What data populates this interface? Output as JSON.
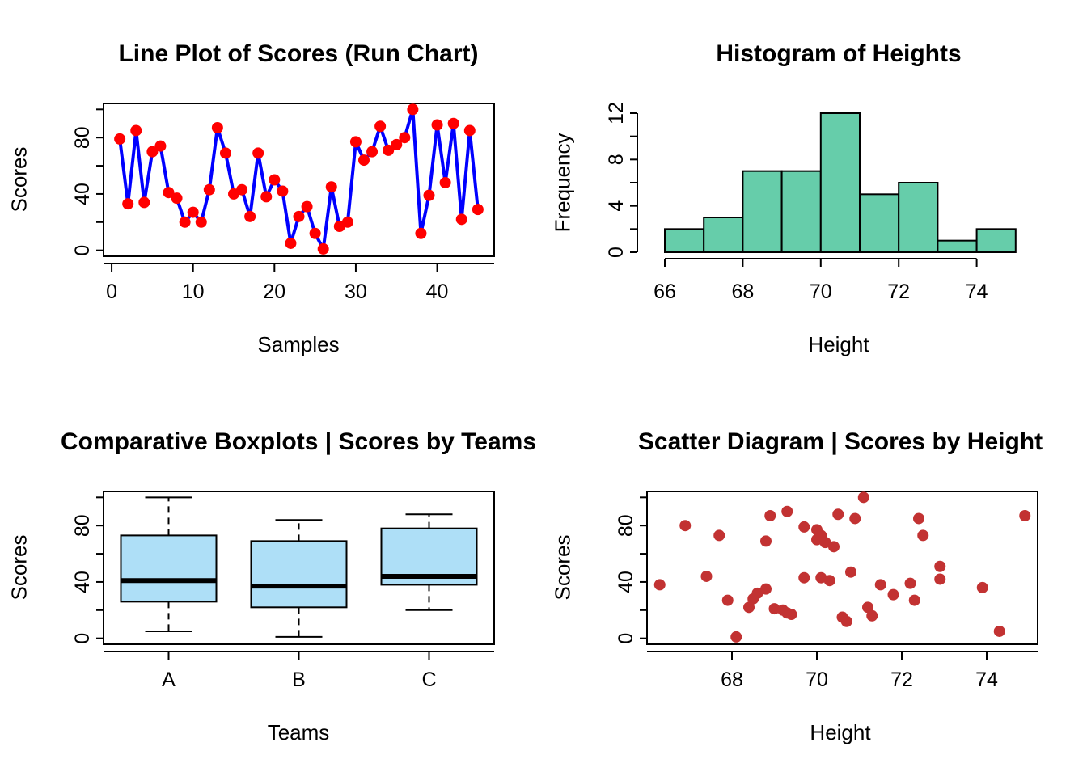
{
  "figure": {
    "background": "#ffffff",
    "axis_color": "#000000",
    "tick_font_px": 25
  },
  "chart_data": [
    {
      "id": "run-chart",
      "type": "line",
      "title": "Line Plot of Scores (Run Chart)",
      "xlabel": "Samples",
      "ylabel": "Scores",
      "x_start": 1,
      "values": [
        79,
        33,
        85,
        34,
        70,
        74,
        41,
        37,
        20,
        27,
        20,
        43,
        87,
        69,
        40,
        43,
        24,
        69,
        38,
        50,
        42,
        5,
        24,
        31,
        12,
        1,
        45,
        17,
        20,
        77,
        64,
        70,
        88,
        71,
        75,
        80,
        100,
        12,
        39,
        89,
        48,
        90,
        22,
        85,
        29
      ],
      "xlim": [
        -1,
        47
      ],
      "ylim": [
        -4.2,
        104.2
      ],
      "xticks": [
        0,
        10,
        20,
        30,
        40
      ],
      "xtick_labels": [
        "0",
        "10",
        "20",
        "30",
        "40"
      ],
      "yticks": [
        0,
        20,
        40,
        60,
        80,
        100
      ],
      "ytick_labels": [
        "0",
        "",
        "40",
        "",
        "80",
        ""
      ],
      "line_color": "#0000FF",
      "point_color": "#FF0000",
      "grid": false,
      "legend": null
    },
    {
      "id": "histogram",
      "type": "bar",
      "title": "Histogram of Heights",
      "xlabel": "Height",
      "ylabel": "Frequency",
      "bin_start": 66,
      "bin_width": 1,
      "counts": [
        2,
        3,
        7,
        7,
        12,
        5,
        6,
        1,
        2
      ],
      "bin_edges": [
        66,
        67,
        68,
        69,
        70,
        71,
        72,
        73,
        74,
        75
      ],
      "ylim": [
        0,
        12
      ],
      "xticks": [
        66,
        68,
        70,
        72,
        74
      ],
      "xtick_labels": [
        "66",
        "68",
        "70",
        "72",
        "74"
      ],
      "yticks": [
        0,
        2,
        4,
        6,
        8,
        10,
        12
      ],
      "ytick_labels": [
        "0",
        "",
        "4",
        "",
        "8",
        "",
        "12"
      ],
      "axis_x_span": [
        66,
        74
      ],
      "bar_color": "#66CDAA",
      "bar_border_color": "#000000",
      "grid": false,
      "legend": null
    },
    {
      "id": "boxplot",
      "type": "boxplot",
      "title": "Comparative Boxplots | Scores by Teams",
      "xlabel": "Teams",
      "ylabel": "Scores",
      "categories": [
        "A",
        "B",
        "C"
      ],
      "stats": [
        {
          "label": "A",
          "min": 5,
          "q1": 26,
          "median": 41,
          "q3": 73,
          "max": 100
        },
        {
          "label": "B",
          "min": 1,
          "q1": 22,
          "median": 37,
          "q3": 69,
          "max": 84
        },
        {
          "label": "C",
          "min": 20,
          "q1": 38,
          "median": 44,
          "q3": 78,
          "max": 88
        }
      ],
      "ylim": [
        -4.2,
        104.2
      ],
      "yticks": [
        0,
        20,
        40,
        60,
        80,
        100
      ],
      "ytick_labels": [
        "0",
        "",
        "40",
        "",
        "80",
        ""
      ],
      "box_fill": "#AEDFF7",
      "box_border_color": "#000000",
      "median_color": "#000000",
      "grid": false,
      "legend": null
    },
    {
      "id": "scatter",
      "type": "scatter",
      "title": "Scatter Diagram | Scores by Height",
      "xlabel": "Height",
      "ylabel": "Scores",
      "points": [
        [
          66.3,
          38
        ],
        [
          66.9,
          80
        ],
        [
          67.4,
          44
        ],
        [
          67.7,
          73
        ],
        [
          67.9,
          27
        ],
        [
          68.1,
          1
        ],
        [
          68.4,
          22
        ],
        [
          68.5,
          28
        ],
        [
          68.6,
          32
        ],
        [
          68.8,
          35
        ],
        [
          68.8,
          69
        ],
        [
          68.9,
          87
        ],
        [
          69.0,
          21
        ],
        [
          69.2,
          20
        ],
        [
          69.3,
          90
        ],
        [
          69.3,
          18
        ],
        [
          69.4,
          17
        ],
        [
          69.7,
          43
        ],
        [
          69.7,
          79
        ],
        [
          70.0,
          77
        ],
        [
          70.0,
          70
        ],
        [
          70.1,
          73
        ],
        [
          70.1,
          43
        ],
        [
          70.2,
          68
        ],
        [
          70.3,
          41
        ],
        [
          70.4,
          65
        ],
        [
          70.5,
          88
        ],
        [
          70.6,
          15
        ],
        [
          70.7,
          12
        ],
        [
          70.8,
          47
        ],
        [
          70.9,
          85
        ],
        [
          71.1,
          100
        ],
        [
          71.2,
          22
        ],
        [
          71.3,
          16
        ],
        [
          71.5,
          38
        ],
        [
          71.8,
          31
        ],
        [
          72.2,
          39
        ],
        [
          72.3,
          27
        ],
        [
          72.4,
          85
        ],
        [
          72.5,
          73
        ],
        [
          72.9,
          51
        ],
        [
          72.9,
          42
        ],
        [
          73.9,
          36
        ],
        [
          74.3,
          5
        ],
        [
          74.9,
          87
        ]
      ],
      "xlim": [
        66,
        75.2
      ],
      "ylim": [
        -4.2,
        104.2
      ],
      "xticks": [
        68,
        70,
        72,
        74
      ],
      "xtick_labels": [
        "68",
        "70",
        "72",
        "74"
      ],
      "yticks": [
        0,
        20,
        40,
        60,
        80,
        100
      ],
      "ytick_labels": [
        "0",
        "",
        "40",
        "",
        "80",
        ""
      ],
      "point_color": "#C23232",
      "grid": false,
      "legend": null
    }
  ]
}
